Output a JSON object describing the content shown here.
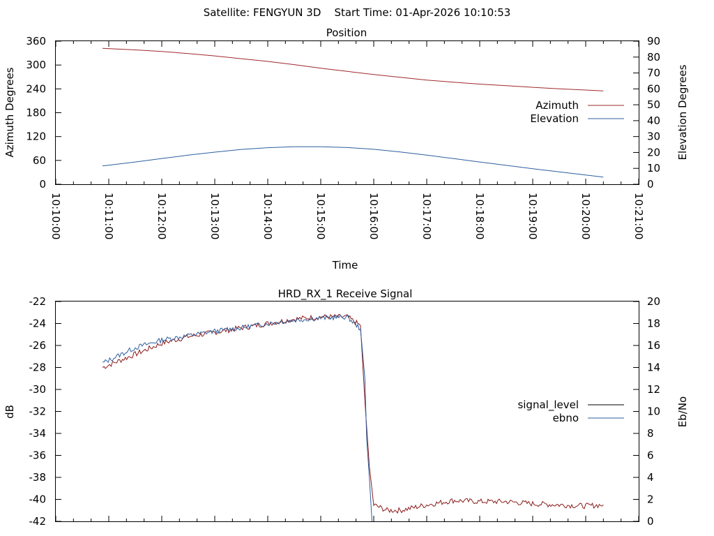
{
  "header": {
    "title": "Satellite: FENGYUN 3D    Start Time: 01-Apr-2026 10:10:53"
  },
  "chart_data": [
    {
      "type": "line",
      "title": "Position",
      "xlabel": "Time",
      "ylabel": "Azimuth Degrees",
      "y2label": "Elevation Degrees",
      "xlim": [
        "10:10:00",
        "10:21:00"
      ],
      "ylim": [
        0,
        360
      ],
      "y2lim": [
        0,
        90
      ],
      "xticks": [
        "10:10:00",
        "10:11:00",
        "10:12:00",
        "10:13:00",
        "10:14:00",
        "10:15:00",
        "10:16:00",
        "10:17:00",
        "10:18:00",
        "10:19:00",
        "10:20:00",
        "10:21:00"
      ],
      "yticks": [
        "0",
        "60",
        "120",
        "180",
        "240",
        "300",
        "360"
      ],
      "y2ticks": [
        "0",
        "10",
        "20",
        "30",
        "40",
        "50",
        "60",
        "70",
        "80",
        "90"
      ],
      "grid": false,
      "legend": "right",
      "series": [
        {
          "name": "Azimuth",
          "axis": "left",
          "color": "#a0282d",
          "x": [
            "10:10:53",
            "10:11:30",
            "10:12:00",
            "10:12:30",
            "10:13:00",
            "10:13:30",
            "10:14:00",
            "10:14:30",
            "10:15:00",
            "10:15:30",
            "10:16:00",
            "10:16:30",
            "10:17:00",
            "10:17:30",
            "10:18:00",
            "10:18:30",
            "10:19:00",
            "10:19:30",
            "10:20:00",
            "10:20:20"
          ],
          "values": [
            342,
            338,
            334,
            329,
            323,
            316,
            309,
            301,
            292,
            284,
            276,
            269,
            262,
            257,
            252,
            248,
            244,
            240,
            237,
            235
          ]
        },
        {
          "name": "Elevation",
          "axis": "right",
          "color": "#2c5f9e",
          "x": [
            "10:10:53",
            "10:11:30",
            "10:12:00",
            "10:12:30",
            "10:13:00",
            "10:13:30",
            "10:14:00",
            "10:14:30",
            "10:15:00",
            "10:15:30",
            "10:16:00",
            "10:16:30",
            "10:17:00",
            "10:17:30",
            "10:18:00",
            "10:18:30",
            "10:19:00",
            "10:19:30",
            "10:20:00",
            "10:20:20"
          ],
          "values": [
            11.5,
            14,
            16.2,
            18.3,
            20.2,
            21.9,
            23,
            23.6,
            23.6,
            23.1,
            22,
            20.3,
            18.3,
            16.2,
            14,
            11.9,
            9.8,
            7.8,
            5.8,
            4.5
          ]
        }
      ]
    },
    {
      "type": "line",
      "title": "HRD_RX_1 Receive Signal",
      "ylabel": "dB",
      "y2label": "Eb/No",
      "xlim": [
        "10:10:00",
        "10:21:00"
      ],
      "ylim": [
        -42,
        -22
      ],
      "y2lim": [
        0,
        20
      ],
      "yticks": [
        "-42",
        "-40",
        "-38",
        "-36",
        "-34",
        "-32",
        "-30",
        "-28",
        "-26",
        "-24",
        "-22"
      ],
      "y2ticks": [
        "0",
        "2",
        "4",
        "6",
        "8",
        "10",
        "12",
        "14",
        "16",
        "18",
        "20"
      ],
      "grid": false,
      "legend": "right",
      "series": [
        {
          "name": "signal_level",
          "axis": "left",
          "color": "#8b1a1a",
          "x": [
            "10:10:53",
            "10:11:30",
            "10:12:00",
            "10:12:30",
            "10:13:00",
            "10:13:30",
            "10:14:00",
            "10:14:30",
            "10:15:00",
            "10:15:30",
            "10:15:45",
            "10:15:50",
            "10:15:55",
            "10:16:00",
            "10:16:15",
            "10:16:30",
            "10:17:00",
            "10:17:30",
            "10:18:00",
            "10:18:30",
            "10:19:00",
            "10:19:30",
            "10:20:00",
            "10:20:20"
          ],
          "values": [
            -28.0,
            -26.8,
            -25.8,
            -25.2,
            -24.8,
            -24.4,
            -24.0,
            -23.6,
            -23.4,
            -23.4,
            -24.2,
            -31.0,
            -37.0,
            -40.5,
            -41.0,
            -41.0,
            -40.5,
            -40.1,
            -40.2,
            -40.2,
            -40.4,
            -40.5,
            -40.6,
            -40.5
          ]
        },
        {
          "name": "ebno",
          "axis": "right",
          "color": "#2c5f9e",
          "x": [
            "10:10:53",
            "10:11:30",
            "10:12:00",
            "10:12:30",
            "10:13:00",
            "10:13:30",
            "10:14:00",
            "10:14:30",
            "10:15:00",
            "10:15:30",
            "10:15:45",
            "10:15:50",
            "10:15:52",
            "10:15:55",
            "10:15:58"
          ],
          "values": [
            14.4,
            15.8,
            16.5,
            16.9,
            17.3,
            17.6,
            18.0,
            18.3,
            18.5,
            18.6,
            17.5,
            13.0,
            7.5,
            4.0,
            0.0
          ]
        }
      ]
    }
  ]
}
